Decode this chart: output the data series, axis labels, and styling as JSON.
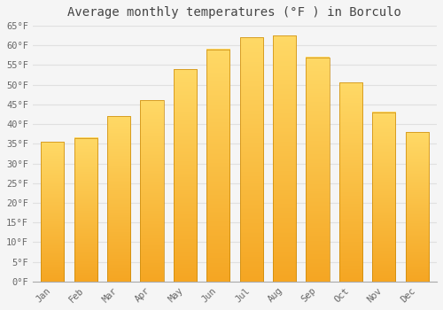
{
  "title": "Average monthly temperatures (°F ) in Borculo",
  "months": [
    "Jan",
    "Feb",
    "Mar",
    "Apr",
    "May",
    "Jun",
    "Jul",
    "Aug",
    "Sep",
    "Oct",
    "Nov",
    "Dec"
  ],
  "values": [
    35.5,
    36.5,
    42.0,
    46.0,
    54.0,
    59.0,
    62.0,
    62.5,
    57.0,
    50.5,
    43.0,
    38.0
  ],
  "bar_color_top": "#FFD966",
  "bar_color_bottom": "#F5A623",
  "bar_edge_color": "#C8880A",
  "ylim": [
    0,
    65
  ],
  "yticks": [
    0,
    5,
    10,
    15,
    20,
    25,
    30,
    35,
    40,
    45,
    50,
    55,
    60,
    65
  ],
  "background_color": "#f5f5f5",
  "plot_bg_color": "#f5f5f5",
  "grid_color": "#e0e0e0",
  "title_fontsize": 10,
  "tick_fontsize": 7.5,
  "tick_color": "#666666",
  "title_color": "#444444"
}
